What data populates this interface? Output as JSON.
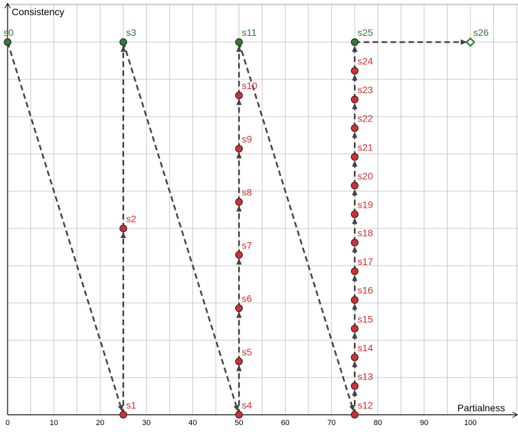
{
  "chart_data": {
    "type": "scatter",
    "xlabel": "Partialness",
    "ylabel": "Consistency",
    "xlim": [
      0,
      110
    ],
    "ylim": [
      0,
      10
    ],
    "grid": true,
    "x_ticks": [
      0,
      10,
      20,
      30,
      40,
      50,
      60,
      70,
      80,
      90,
      100
    ],
    "colors": {
      "consistent": "#2e7d32",
      "inconsistent": "#d32f2f",
      "arrow": "#444444",
      "grid": "#c8c8c8"
    },
    "points": [
      {
        "name": "s0",
        "x": 0,
        "y": 10,
        "kind": "consistent"
      },
      {
        "name": "s1",
        "x": 25,
        "y": 0,
        "kind": "inconsistent"
      },
      {
        "name": "s2",
        "x": 25,
        "y": 5,
        "kind": "inconsistent"
      },
      {
        "name": "s3",
        "x": 25,
        "y": 10,
        "kind": "consistent"
      },
      {
        "name": "s4",
        "x": 50,
        "y": 0,
        "kind": "inconsistent"
      },
      {
        "name": "s5",
        "x": 50,
        "y": 1.43,
        "kind": "inconsistent"
      },
      {
        "name": "s6",
        "x": 50,
        "y": 2.86,
        "kind": "inconsistent"
      },
      {
        "name": "s7",
        "x": 50,
        "y": 4.29,
        "kind": "inconsistent"
      },
      {
        "name": "s8",
        "x": 50,
        "y": 5.71,
        "kind": "inconsistent"
      },
      {
        "name": "s9",
        "x": 50,
        "y": 7.14,
        "kind": "inconsistent"
      },
      {
        "name": "s10",
        "x": 50,
        "y": 8.57,
        "kind": "inconsistent"
      },
      {
        "name": "s11",
        "x": 50,
        "y": 10,
        "kind": "consistent"
      },
      {
        "name": "s12",
        "x": 75,
        "y": 0,
        "kind": "inconsistent"
      },
      {
        "name": "s13",
        "x": 75,
        "y": 0.77,
        "kind": "inconsistent"
      },
      {
        "name": "s14",
        "x": 75,
        "y": 1.54,
        "kind": "inconsistent"
      },
      {
        "name": "s15",
        "x": 75,
        "y": 2.31,
        "kind": "inconsistent"
      },
      {
        "name": "s16",
        "x": 75,
        "y": 3.08,
        "kind": "inconsistent"
      },
      {
        "name": "s17",
        "x": 75,
        "y": 3.85,
        "kind": "inconsistent"
      },
      {
        "name": "s18",
        "x": 75,
        "y": 4.62,
        "kind": "inconsistent"
      },
      {
        "name": "s19",
        "x": 75,
        "y": 5.38,
        "kind": "inconsistent"
      },
      {
        "name": "s20",
        "x": 75,
        "y": 6.15,
        "kind": "inconsistent"
      },
      {
        "name": "s21",
        "x": 75,
        "y": 6.92,
        "kind": "inconsistent"
      },
      {
        "name": "s22",
        "x": 75,
        "y": 7.69,
        "kind": "inconsistent"
      },
      {
        "name": "s23",
        "x": 75,
        "y": 8.46,
        "kind": "inconsistent"
      },
      {
        "name": "s24",
        "x": 75,
        "y": 9.23,
        "kind": "inconsistent"
      },
      {
        "name": "s25",
        "x": 75,
        "y": 10,
        "kind": "consistent"
      },
      {
        "name": "s26",
        "x": 100,
        "y": 10,
        "kind": "final"
      }
    ],
    "arrows": [
      [
        "s0",
        "s1"
      ],
      [
        "s1",
        "s2"
      ],
      [
        "s2",
        "s3"
      ],
      [
        "s3",
        "s4"
      ],
      [
        "s4",
        "s5"
      ],
      [
        "s5",
        "s6"
      ],
      [
        "s6",
        "s7"
      ],
      [
        "s7",
        "s8"
      ],
      [
        "s8",
        "s9"
      ],
      [
        "s9",
        "s10"
      ],
      [
        "s10",
        "s11"
      ],
      [
        "s11",
        "s12"
      ],
      [
        "s12",
        "s13"
      ],
      [
        "s13",
        "s14"
      ],
      [
        "s14",
        "s15"
      ],
      [
        "s15",
        "s16"
      ],
      [
        "s16",
        "s17"
      ],
      [
        "s17",
        "s18"
      ],
      [
        "s18",
        "s19"
      ],
      [
        "s19",
        "s20"
      ],
      [
        "s20",
        "s21"
      ],
      [
        "s21",
        "s22"
      ],
      [
        "s22",
        "s23"
      ],
      [
        "s23",
        "s24"
      ],
      [
        "s24",
        "s25"
      ],
      [
        "s25",
        "s26"
      ]
    ]
  }
}
